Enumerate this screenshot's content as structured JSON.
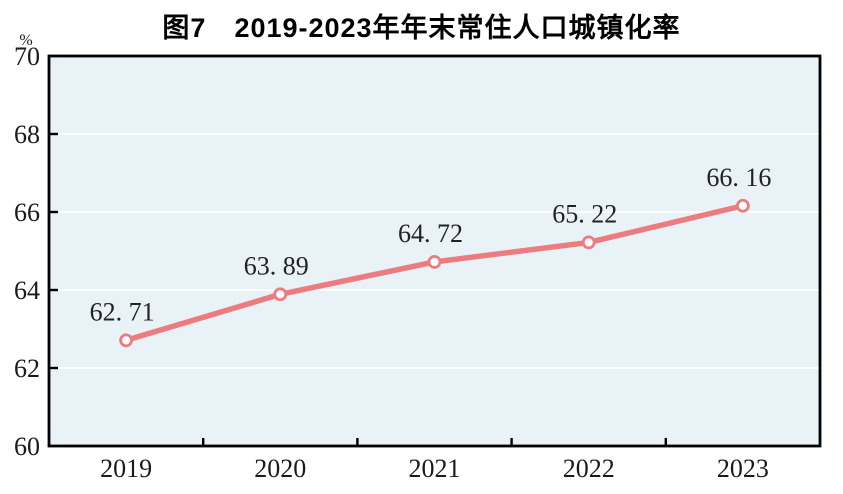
{
  "chart": {
    "title": "图7　2019-2023年年末常住人口城镇化率",
    "unit_label": "%"
  },
  "chart_data": {
    "type": "line",
    "title": "图7　2019-2023年年末常住人口城镇化率",
    "categories": [
      "2019",
      "2020",
      "2021",
      "2022",
      "2023"
    ],
    "values": [
      62.71,
      63.89,
      64.72,
      65.22,
      66.16
    ],
    "point_labels": [
      "62. 71",
      "63. 89",
      "64. 72",
      "65. 22",
      "66. 16"
    ],
    "xlabel": "",
    "ylabel": "%",
    "ylim": [
      60,
      70
    ],
    "yticks": [
      60,
      62,
      64,
      66,
      68,
      70
    ],
    "grid": "horizontal white gridlines at major y ticks",
    "legend_position": "none",
    "colors": {
      "line": "#ec7c80",
      "marker_fill": "#ffffff",
      "marker_stroke": "#ec7c80",
      "plot_background": "#e9f2f7",
      "gridline": "#ffffff",
      "axis": "#000000",
      "tick_label": "#1a1a1a",
      "data_label": "#222222",
      "title": "#000000",
      "page_background": "#ffffff"
    }
  }
}
